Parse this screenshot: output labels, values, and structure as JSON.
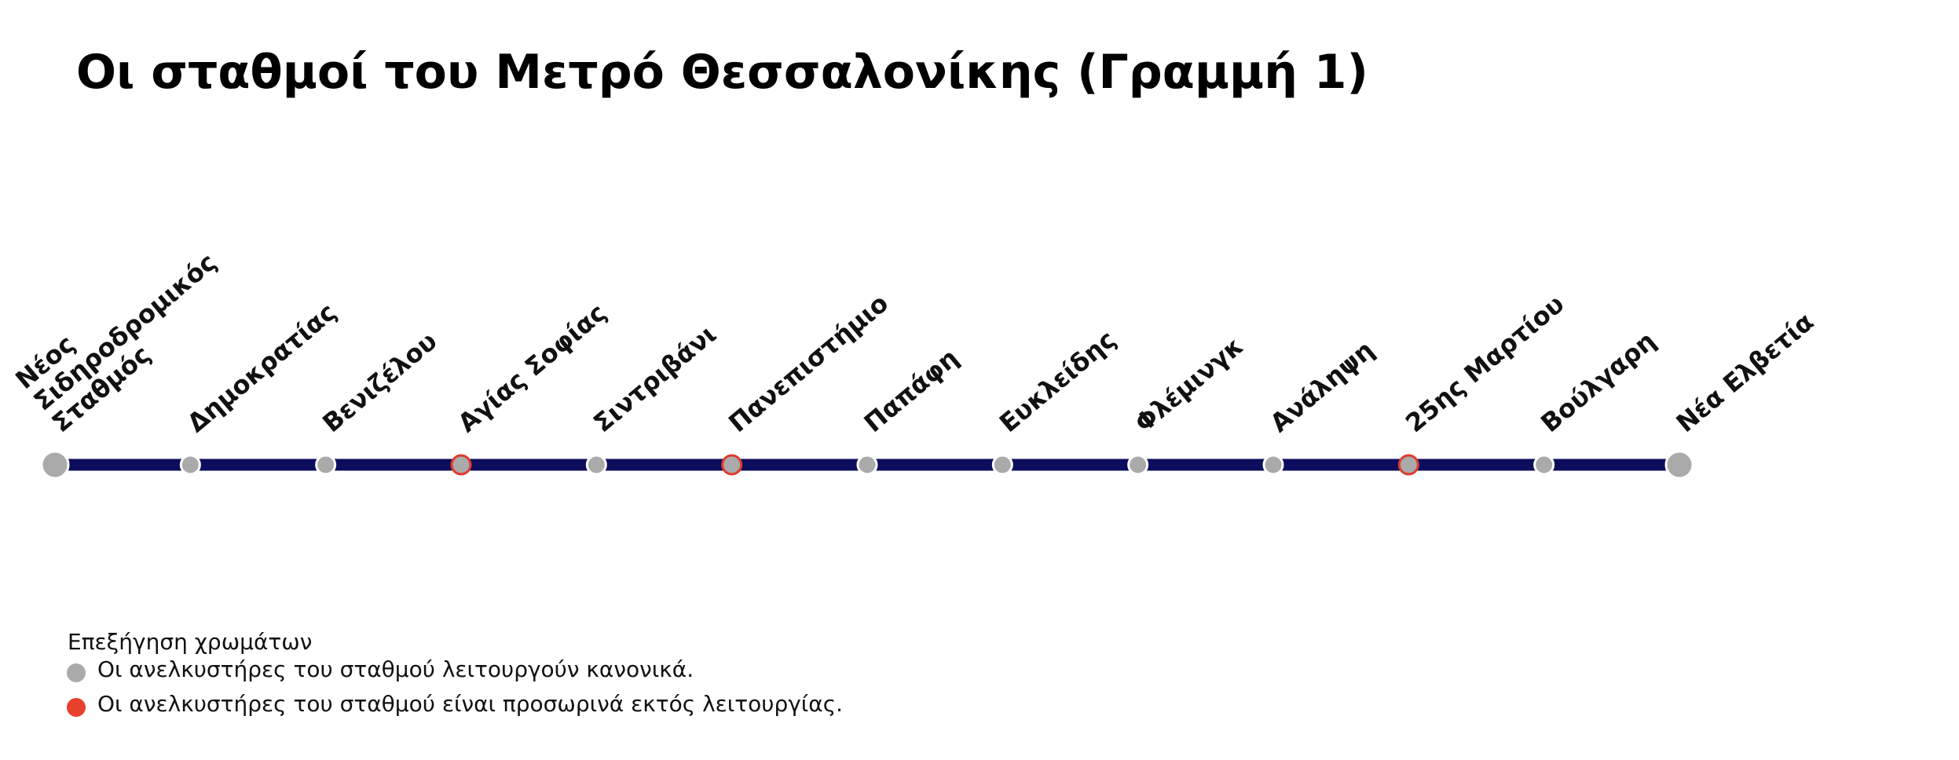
{
  "title": "Οι σταθμοί του Μετρό Θεσσαλονίκης (Γραμμή 1)",
  "line_color": "#0d0d5e",
  "stations": [
    {
      "lines": [
        "Νέος",
        "Σιδηροδρομικός",
        "Σταθμός"
      ],
      "fill": "#aaaaaa",
      "outline": "#ffffff"
    },
    {
      "lines": [
        "Δημοκρατίας"
      ],
      "fill": "#aaaaaa",
      "outline": "#ffffff"
    },
    {
      "lines": [
        "Βενιζέλου"
      ],
      "fill": "#aaaaaa",
      "outline": "#ffffff"
    },
    {
      "lines": [
        "Αγίας Σοφίας"
      ],
      "fill": "#aaaaaa",
      "outline": "#e03a2e"
    },
    {
      "lines": [
        "Σιντριβάνι"
      ],
      "fill": "#aaaaaa",
      "outline": "#ffffff"
    },
    {
      "lines": [
        "Πανεπιστήμιο"
      ],
      "fill": "#aaaaaa",
      "outline": "#e03a2e"
    },
    {
      "lines": [
        "Παπάφη"
      ],
      "fill": "#aaaaaa",
      "outline": "#ffffff"
    },
    {
      "lines": [
        "Ευκλείδης"
      ],
      "fill": "#aaaaaa",
      "outline": "#ffffff"
    },
    {
      "lines": [
        "Φλέμινγκ"
      ],
      "fill": "#aaaaaa",
      "outline": "#ffffff"
    },
    {
      "lines": [
        "Ανάληψη"
      ],
      "fill": "#aaaaaa",
      "outline": "#ffffff"
    },
    {
      "lines": [
        "25ης Μαρτίου"
      ],
      "fill": "#aaaaaa",
      "outline": "#e03a2e"
    },
    {
      "lines": [
        "Βούλγαρη"
      ],
      "fill": "#aaaaaa",
      "outline": "#ffffff"
    },
    {
      "lines": [
        "Νέα Ελβετία"
      ],
      "fill": "#aaaaaa",
      "outline": "#ffffff"
    }
  ],
  "legend": {
    "title": "Επεξήγηση χρωμάτων",
    "items": [
      {
        "color": "#aaaaaa",
        "label": "Οι ανελκυστήρες του σταθμού λειτουργούν κανονικά."
      },
      {
        "color": "#e8402f",
        "label": "Οι ανελκυστήρες του σταθμού είναι προσωρινά εκτός λειτουργίας."
      }
    ]
  }
}
